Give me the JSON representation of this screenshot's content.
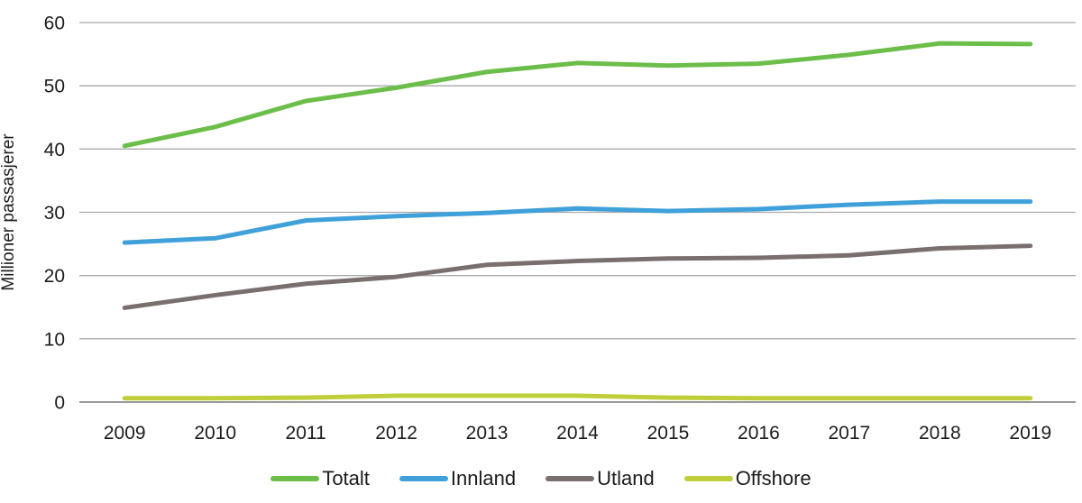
{
  "chart_data": {
    "type": "line",
    "title": "",
    "xlabel": "",
    "ylabel": "Millioner passasjerer",
    "x": [
      "2009",
      "2010",
      "2011",
      "2012",
      "2013",
      "2014",
      "2015",
      "2016",
      "2017",
      "2018",
      "2019"
    ],
    "ylim": [
      0,
      60
    ],
    "yticks": [
      0,
      10,
      20,
      30,
      40,
      50,
      60
    ],
    "grid": "horizontal",
    "legend_position": "bottom",
    "series": [
      {
        "name": "Totalt",
        "color": "#6cbe4a",
        "values": [
          40.5,
          43.5,
          47.6,
          49.7,
          52.2,
          53.6,
          53.2,
          53.5,
          54.9,
          56.7,
          56.6
        ]
      },
      {
        "name": "Innland",
        "color": "#3fa0da",
        "values": [
          25.2,
          25.9,
          28.7,
          29.4,
          29.9,
          30.6,
          30.2,
          30.5,
          31.2,
          31.7,
          31.7
        ]
      },
      {
        "name": "Utland",
        "color": "#7a6f6f",
        "values": [
          14.9,
          16.9,
          18.7,
          19.8,
          21.7,
          22.3,
          22.7,
          22.8,
          23.2,
          24.3,
          24.7
        ]
      },
      {
        "name": "Offshore",
        "color": "#c0cf39",
        "values": [
          0.6,
          0.6,
          0.7,
          1.0,
          1.0,
          1.0,
          0.7,
          0.6,
          0.6,
          0.6,
          0.6
        ]
      }
    ],
    "colors": {
      "gridline": "#a9a9a9",
      "axis_line": "#9b9b9b",
      "text": "#1c1c1c"
    }
  }
}
